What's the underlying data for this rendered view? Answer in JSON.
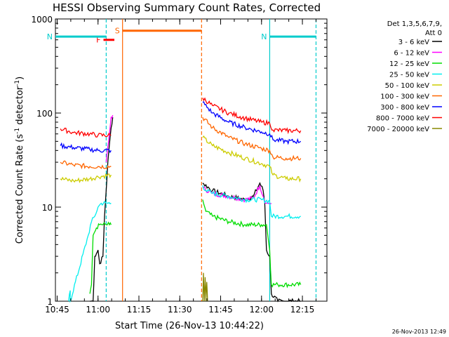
{
  "chart_data": {
    "type": "line",
    "title": "HESSI Observing Summary Count Rates, Corrected",
    "xlabel": "Start Time (26-Nov-13 10:44:22)",
    "ylabel": "Corrected Count Rate (s⁻¹ detector⁻¹)",
    "ylabel_main": "Corrected Count Rate (s",
    "ylabel_mid": " detector",
    "ylabel_end": ")",
    "ylabel_exp": "-1",
    "y_scale": "log",
    "xlim": [
      "10:44:22",
      "12:24"
    ],
    "ylim": [
      1,
      1000
    ],
    "x_ticks": [
      "10:45",
      "11:00",
      "11:15",
      "11:30",
      "11:45",
      "12:00",
      "12:15"
    ],
    "y_ticks": [
      "1",
      "10",
      "100",
      "1000"
    ],
    "footer": "26-Nov-2013 12:49",
    "legend": {
      "title_line1": "Det 1,3,5,6,7,9,",
      "title_line2": "Att 0",
      "position": "right",
      "entries": [
        {
          "label": "3 - 6 keV",
          "color": "#000000"
        },
        {
          "label": "6 - 12 keV",
          "color": "#ff00ff"
        },
        {
          "label": "12 - 25 keV",
          "color": "#00dd00"
        },
        {
          "label": "25 - 50 keV",
          "color": "#00eeee"
        },
        {
          "label": "50 - 100 keV",
          "color": "#cccc00"
        },
        {
          "label": "100 - 300 keV",
          "color": "#ff6600"
        },
        {
          "label": "300 - 800 keV",
          "color": "#0000ff"
        },
        {
          "label": "800 - 7000 keV",
          "color": "#ff0000"
        },
        {
          "label": "7000 - 20000 keV",
          "color": "#888800"
        }
      ]
    },
    "flags": [
      {
        "label": "F",
        "color": "#ff0000",
        "start": "11:02",
        "end": "11:06",
        "level": 600
      },
      {
        "label": "N",
        "color": "#00cccc",
        "start": "10:44:22",
        "end": "11:03",
        "level": 650
      },
      {
        "label": "N",
        "color": "#00cccc",
        "start": "12:03",
        "end": "12:20",
        "level": 650
      },
      {
        "label": "S",
        "color": "#ff6600",
        "start": "11:09",
        "end": "11:38",
        "level": 750
      }
    ],
    "vertical_lines": [
      {
        "time": "11:03",
        "color": "#00cccc",
        "style": "dashed"
      },
      {
        "time": "11:09",
        "color": "#ff6600",
        "style": "solid"
      },
      {
        "time": "11:38",
        "color": "#ff6600",
        "style": "dashed"
      },
      {
        "time": "12:03",
        "color": "#00cccc",
        "style": "solid"
      },
      {
        "time": "12:20",
        "color": "#00cccc",
        "style": "dashed"
      }
    ],
    "series": [
      {
        "name": "3 - 6 keV",
        "color": "#000000",
        "segments": [
          [
            [
              10.95,
              1
            ],
            [
              10.97,
              1
            ],
            [
              10.98,
              3
            ],
            [
              10.99,
              3.2
            ],
            [
              11.0,
              3.5
            ],
            [
              11.01,
              2.5
            ],
            [
              11.03,
              3
            ],
            [
              11.04,
              8
            ],
            [
              11.06,
              30
            ],
            [
              11.08,
              70
            ],
            [
              11.09,
              90
            ]
          ],
          [
            [
              11.64,
              18
            ],
            [
              11.7,
              15
            ],
            [
              11.8,
              13
            ],
            [
              11.9,
              12
            ],
            [
              11.95,
              13
            ],
            [
              11.99,
              18
            ],
            [
              12.01,
              15
            ],
            [
              12.02,
              11
            ],
            [
              12.03,
              3.5
            ],
            [
              12.05,
              3
            ],
            [
              12.06,
              1.2
            ],
            [
              12.1,
              1
            ],
            [
              12.24,
              1
            ]
          ]
        ]
      },
      {
        "name": "6 - 12 keV",
        "color": "#ff00ff",
        "segments": [
          [
            [
              11.05,
              30
            ],
            [
              11.07,
              60
            ],
            [
              11.08,
              90
            ],
            [
              11.09,
              95
            ]
          ],
          [
            [
              11.64,
              16
            ],
            [
              11.7,
              14
            ],
            [
              11.8,
              13
            ],
            [
              11.9,
              12
            ],
            [
              11.95,
              12.5
            ],
            [
              11.99,
              17
            ],
            [
              12.01,
              13
            ],
            [
              12.03,
              11
            ],
            [
              12.05,
              11
            ],
            [
              12.06,
              11
            ]
          ]
        ]
      },
      {
        "name": "12 - 25 keV",
        "color": "#00dd00",
        "segments": [
          [
            [
              10.95,
              1.2
            ],
            [
              10.96,
              1.5
            ],
            [
              10.97,
              5
            ],
            [
              10.99,
              6
            ],
            [
              11.01,
              6.5
            ],
            [
              11.03,
              6.5
            ],
            [
              11.05,
              6.5
            ],
            [
              11.07,
              6.5
            ],
            [
              11.08,
              6.5
            ]
          ],
          [
            [
              11.64,
              12
            ],
            [
              11.66,
              9
            ],
            [
              11.7,
              8
            ],
            [
              11.8,
              7
            ],
            [
              11.9,
              6.5
            ],
            [
              12.0,
              6.5
            ],
            [
              12.03,
              6.5
            ],
            [
              12.05,
              3.5
            ],
            [
              12.06,
              1.5
            ],
            [
              12.1,
              1.5
            ],
            [
              12.24,
              1.5
            ]
          ]
        ]
      },
      {
        "name": "25 - 50 keV",
        "color": "#00eeee",
        "segments": [
          [
            [
              10.82,
              1
            ],
            [
              10.83,
              1.3
            ],
            [
              10.83,
              1
            ],
            [
              10.94,
              5
            ],
            [
              10.96,
              7
            ],
            [
              10.98,
              8
            ],
            [
              11.0,
              10
            ],
            [
              11.02,
              11
            ],
            [
              11.05,
              11
            ],
            [
              11.08,
              11
            ]
          ],
          [
            [
              11.64,
              17
            ],
            [
              11.66,
              15
            ],
            [
              11.7,
              14
            ],
            [
              11.8,
              13
            ],
            [
              11.9,
              12
            ],
            [
              12.0,
              12
            ],
            [
              12.05,
              11.5
            ],
            [
              12.06,
              8
            ],
            [
              12.15,
              8
            ],
            [
              12.24,
              8
            ]
          ]
        ]
      },
      {
        "name": "50 - 100 keV",
        "color": "#cccc00",
        "segments": [
          [
            [
              10.77,
              20
            ],
            [
              10.85,
              19
            ],
            [
              10.95,
              20
            ],
            [
              11.0,
              21
            ],
            [
              11.08,
              22
            ]
          ],
          [
            [
              11.64,
              55
            ],
            [
              11.7,
              45
            ],
            [
              11.8,
              38
            ],
            [
              11.9,
              33
            ],
            [
              12.0,
              29
            ],
            [
              12.05,
              27
            ],
            [
              12.07,
              22
            ],
            [
              12.15,
              20
            ],
            [
              12.24,
              20
            ]
          ]
        ]
      },
      {
        "name": "100 - 300 keV",
        "color": "#ff6600",
        "segments": [
          [
            [
              10.77,
              30
            ],
            [
              10.85,
              28
            ],
            [
              10.95,
              27
            ],
            [
              11.0,
              27
            ],
            [
              11.08,
              27
            ]
          ],
          [
            [
              11.64,
              90
            ],
            [
              11.7,
              70
            ],
            [
              11.8,
              55
            ],
            [
              11.9,
              47
            ],
            [
              12.0,
              42
            ],
            [
              12.05,
              40
            ],
            [
              12.07,
              34
            ],
            [
              12.15,
              33
            ],
            [
              12.24,
              33
            ]
          ]
        ]
      },
      {
        "name": "300 - 800 keV",
        "color": "#0000ff",
        "segments": [
          [
            [
              10.77,
              45
            ],
            [
              10.85,
              43
            ],
            [
              10.95,
              41
            ],
            [
              11.0,
              40
            ],
            [
              11.08,
              40
            ]
          ],
          [
            [
              11.64,
              130
            ],
            [
              11.7,
              100
            ],
            [
              11.8,
              80
            ],
            [
              11.9,
              70
            ],
            [
              12.0,
              63
            ],
            [
              12.05,
              60
            ],
            [
              12.07,
              52
            ],
            [
              12.15,
              50
            ],
            [
              12.24,
              50
            ]
          ]
        ]
      },
      {
        "name": "800 - 7000 keV",
        "color": "#ff0000",
        "segments": [
          [
            [
              10.77,
              68
            ],
            [
              10.85,
              62
            ],
            [
              10.95,
              60
            ],
            [
              11.0,
              58
            ],
            [
              11.08,
              58
            ]
          ],
          [
            [
              11.64,
              145
            ],
            [
              11.7,
              120
            ],
            [
              11.8,
              100
            ],
            [
              11.9,
              88
            ],
            [
              12.0,
              80
            ],
            [
              12.05,
              78
            ],
            [
              12.07,
              66
            ],
            [
              12.15,
              65
            ],
            [
              12.24,
              65
            ]
          ]
        ]
      },
      {
        "name": "7000 - 20000 keV",
        "color": "#888800",
        "segments": [
          [
            [
              11.64,
              1
            ],
            [
              11.645,
              2
            ],
            [
              11.65,
              1
            ],
            [
              11.655,
              1.8
            ],
            [
              11.66,
              1
            ],
            [
              11.665,
              1.6
            ],
            [
              11.67,
              1
            ]
          ]
        ]
      }
    ]
  }
}
